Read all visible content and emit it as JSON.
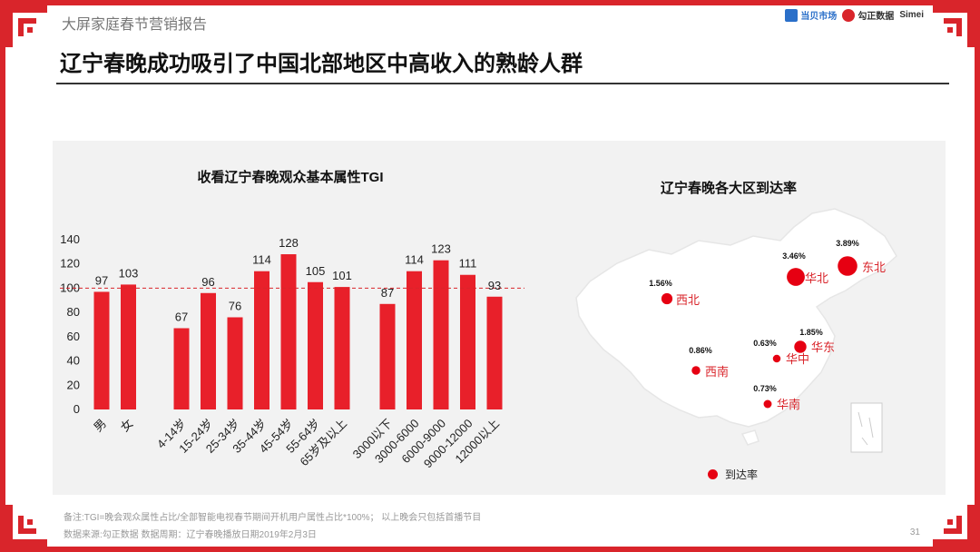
{
  "header": {
    "report_title": "大屏家庭春节营销报告",
    "logos": [
      "当贝市场",
      "勾正数据",
      "Simei"
    ],
    "headline": "辽宁春晚成功吸引了中国北部地区中高收入的熟龄人群"
  },
  "chart_data": [
    {
      "type": "bar",
      "title": "收看辽宁春晚观众基本属性TGI",
      "groups": [
        {
          "categories": [
            "男",
            "女"
          ],
          "values": [
            97,
            103
          ]
        },
        {
          "categories": [
            "4-14岁",
            "15-24岁",
            "25-34岁",
            "35-44岁",
            "45-54岁",
            "55-64岁",
            "65岁及以上"
          ],
          "values": [
            67,
            96,
            76,
            114,
            128,
            105,
            101
          ]
        },
        {
          "categories": [
            "3000以下",
            "3000-6000",
            "6000-9000",
            "9000-12000",
            "12000以上"
          ],
          "values": [
            87,
            114,
            123,
            111,
            93
          ]
        }
      ],
      "ylim": [
        0,
        140
      ],
      "yticks": [
        0,
        20,
        40,
        60,
        80,
        100,
        120,
        140
      ],
      "reference_line": {
        "value": 100,
        "label": "100",
        "style": "dashed",
        "color": "#d9252b"
      },
      "bar_color": "#e8202a",
      "grid": false
    },
    {
      "type": "scatter",
      "title": "辽宁春晚各大区到达率",
      "series": [
        {
          "name": "到达率",
          "regions": [
            {
              "name": "东北",
              "value": 3.89,
              "label": "3.89%"
            },
            {
              "name": "华北",
              "value": 3.46,
              "label": "3.46%"
            },
            {
              "name": "西北",
              "value": 1.56,
              "label": "1.56%"
            },
            {
              "name": "华东",
              "value": 1.85,
              "label": "1.85%"
            },
            {
              "name": "华中",
              "value": 0.63,
              "label": "0.63%"
            },
            {
              "name": "西南",
              "value": 0.86,
              "label": "0.86%"
            },
            {
              "name": "华南",
              "value": 0.73,
              "label": "0.73%"
            }
          ]
        }
      ],
      "legend": {
        "label": "到达率",
        "placement": "bottom",
        "color": "#e60012"
      }
    }
  ],
  "footer": {
    "note": "备注:TGI=晚会观众属性占比/全部智能电视春节期间开机用户属性占比*100%； 以上晚会只包括首播节目",
    "source": "数据来源:勾正数据     数据周期：辽宁春晚播放日期2019年2月3日",
    "page": "31"
  }
}
